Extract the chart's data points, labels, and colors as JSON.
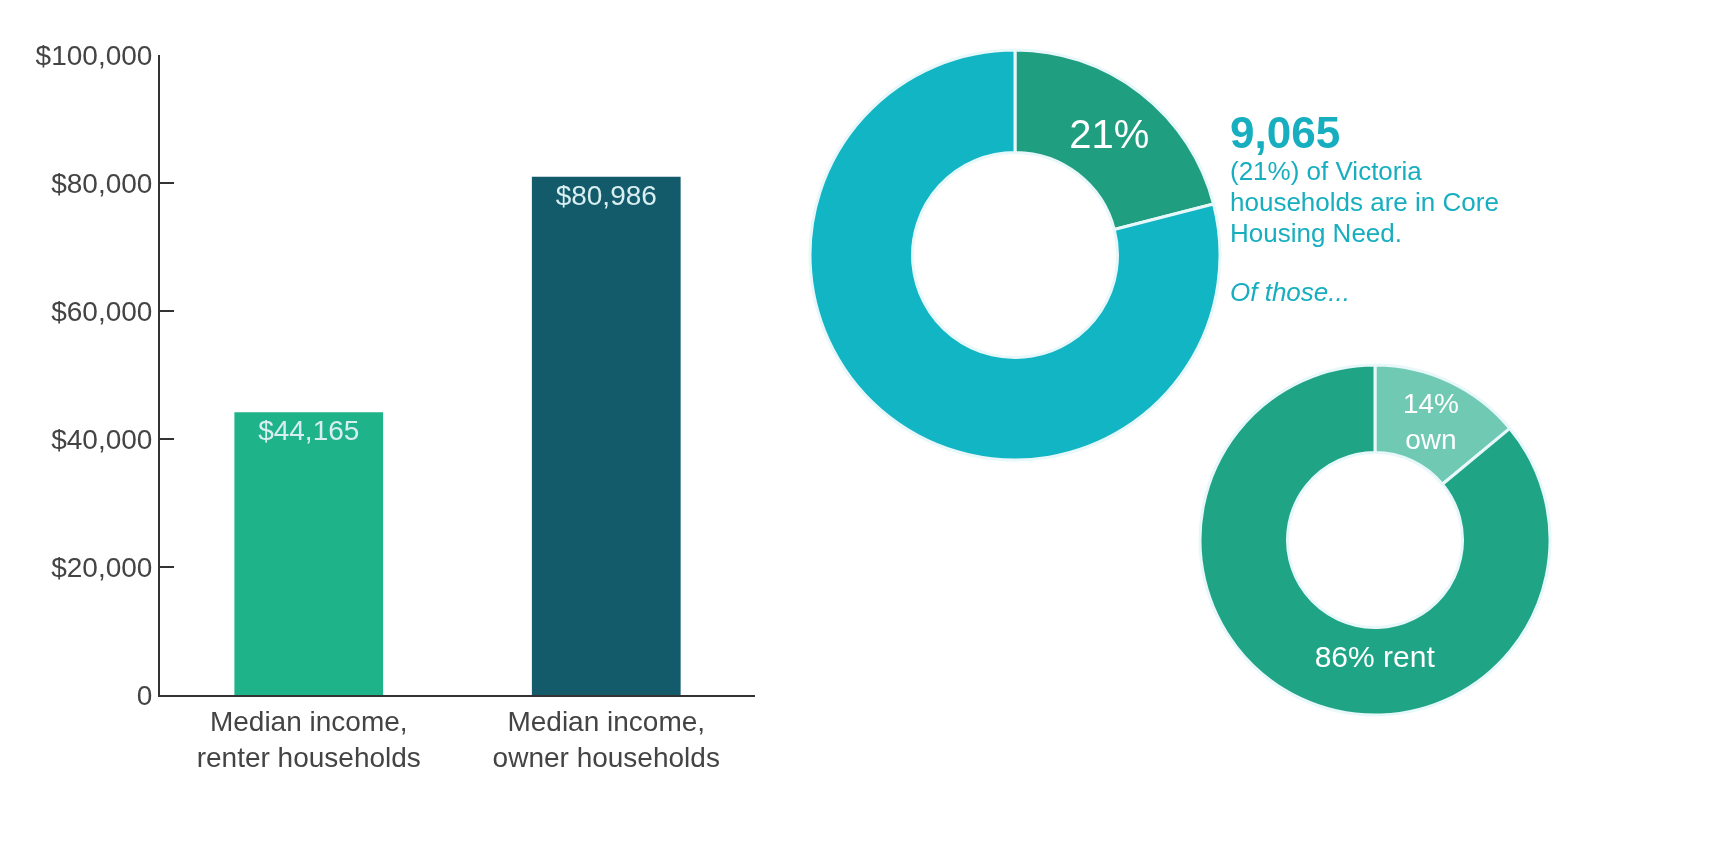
{
  "chart_data": [
    {
      "type": "bar",
      "categories": [
        "Median income, renter households",
        "Median income, owner households"
      ],
      "values": [
        44165,
        80986
      ],
      "colors": [
        "#1fb38a",
        "#135a6b"
      ],
      "value_labels": [
        "$44,165",
        "$80,986"
      ],
      "ylim": [
        0,
        100000
      ],
      "yticks": [
        0,
        {
          "value": 20000,
          "label": "$20,000"
        },
        {
          "value": 40000,
          "label": "$40,000"
        },
        {
          "value": 60000,
          "label": "$60,000"
        },
        {
          "value": 80000,
          "label": "$80,000"
        },
        {
          "value": 100000,
          "label": "$100,000"
        }
      ],
      "grid": false,
      "legend": false
    },
    {
      "type": "donut",
      "categories": [
        null,
        null
      ],
      "values": [
        21,
        79
      ],
      "colors": [
        "#1f9e80",
        "#12b5c4"
      ],
      "value_labels": [
        "21%",
        null
      ],
      "legend": false,
      "annotations": [
        "9,065",
        "(21%) of Victoria households are in Core Housing Need.",
        "Of those..."
      ]
    },
    {
      "type": "donut",
      "categories": [
        null,
        null
      ],
      "values": [
        14,
        86
      ],
      "colors": [
        "#6fc9b3",
        "#1fa585"
      ],
      "value_labels": [
        "14%\nown",
        "86% rent"
      ],
      "legend": false
    }
  ]
}
